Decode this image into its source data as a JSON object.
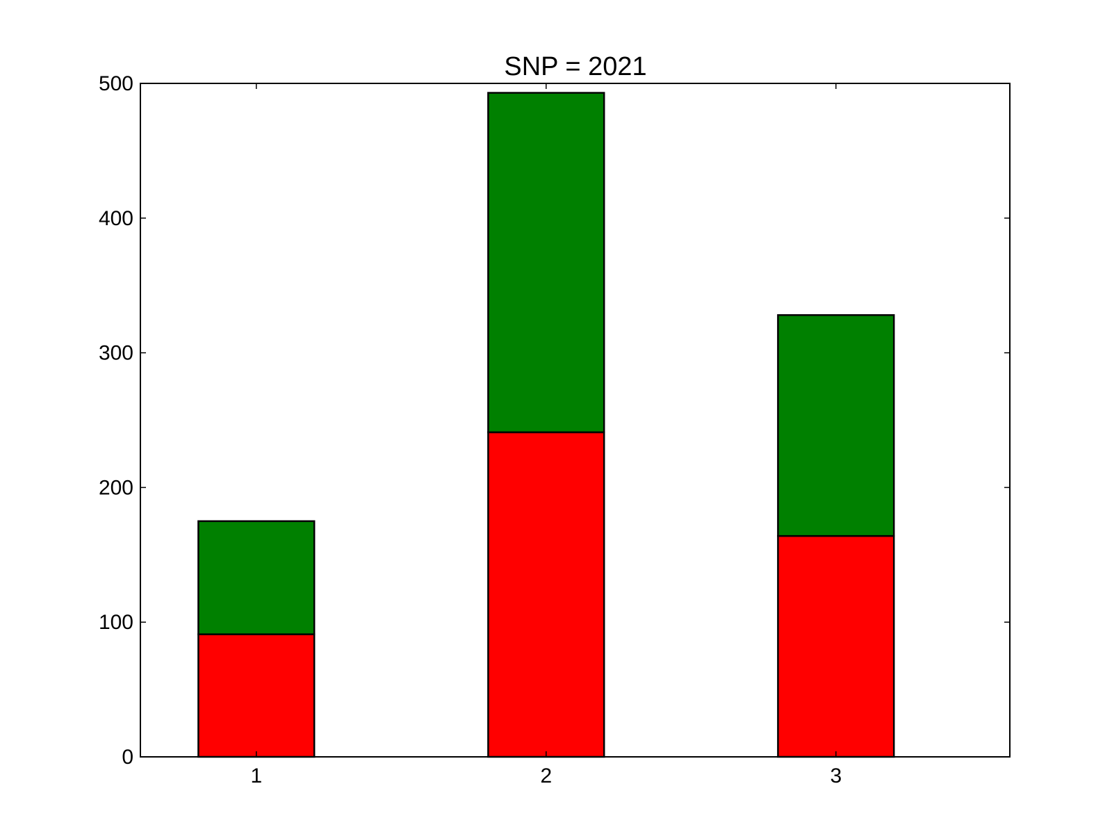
{
  "chart_data": {
    "type": "bar",
    "stacked": true,
    "title": "SNP = 2021",
    "xlabel": "",
    "ylabel": "",
    "categories": [
      "1",
      "2",
      "3"
    ],
    "series": [
      {
        "values": [
          91,
          241,
          164
        ],
        "color": "#ff0000"
      },
      {
        "values": [
          84,
          252,
          164
        ],
        "color": "#008000"
      }
    ],
    "ylim": [
      0,
      500
    ],
    "yticks": [
      0,
      100,
      200,
      300,
      400,
      500
    ],
    "ytick_labels": [
      "0",
      "100",
      "200",
      "300",
      "400",
      "500"
    ],
    "xlim": [
      0.6,
      3.6
    ],
    "xticks": [
      1,
      2,
      3
    ],
    "bar_width": 0.4,
    "grid": false,
    "edge_color": "#000000"
  }
}
